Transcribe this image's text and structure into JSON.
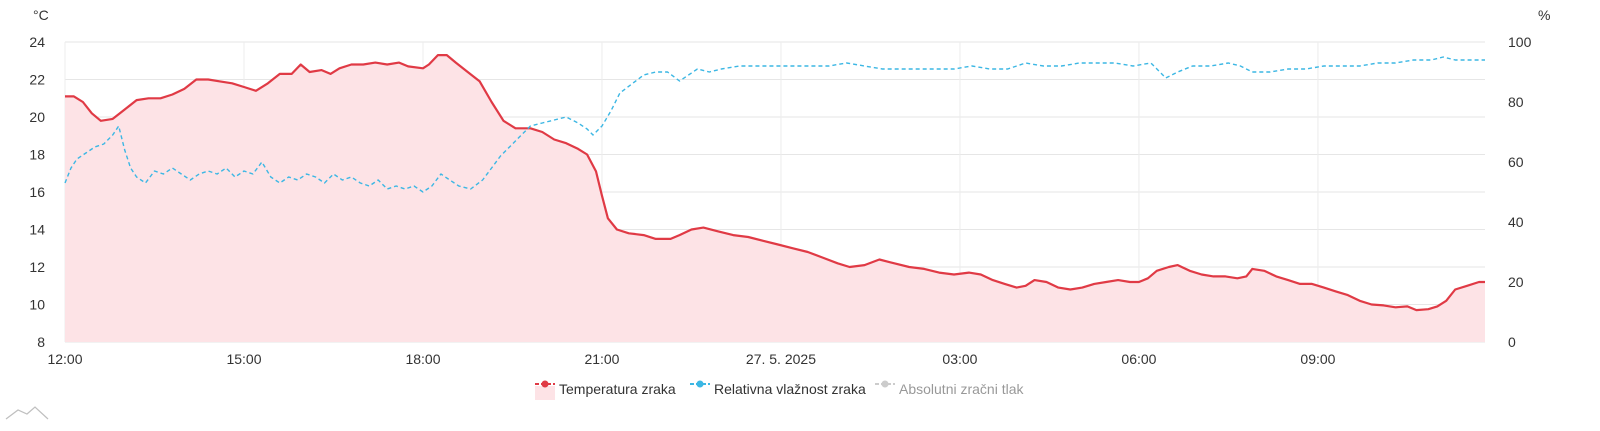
{
  "chart_data": {
    "type": "line",
    "x_unit": "hours since 12:00 (26. 5. 2025)",
    "x_ticks": [
      {
        "x": 0,
        "label": "12:00"
      },
      {
        "x": 3,
        "label": "15:00"
      },
      {
        "x": 6,
        "label": "18:00"
      },
      {
        "x": 9,
        "label": "21:00"
      },
      {
        "x": 12,
        "label": "27. 5. 2025"
      },
      {
        "x": 15,
        "label": "03:00"
      },
      {
        "x": 18,
        "label": "06:00"
      },
      {
        "x": 21,
        "label": "09:00"
      }
    ],
    "xlim": [
      0,
      23.8
    ],
    "y_left": {
      "unit_label": "°C",
      "ylim": [
        8,
        24
      ],
      "ticks": [
        8,
        10,
        12,
        14,
        16,
        18,
        20,
        22,
        24
      ]
    },
    "y_right": {
      "unit_label": "%",
      "ylim": [
        0,
        100
      ],
      "ticks": [
        0,
        20,
        40,
        60,
        80,
        100
      ]
    },
    "grid": true,
    "legend_position": "bottom-center",
    "series": [
      {
        "name": "Temperatura zraka",
        "axis": "left",
        "color": "#E03A45",
        "fill": "#FDE3E6",
        "style": "solid-area",
        "points": [
          [
            0,
            21.1
          ],
          [
            0.15,
            21.1
          ],
          [
            0.3,
            20.8
          ],
          [
            0.45,
            20.2
          ],
          [
            0.6,
            19.8
          ],
          [
            0.8,
            19.9
          ],
          [
            1.0,
            20.4
          ],
          [
            1.2,
            20.9
          ],
          [
            1.4,
            21.0
          ],
          [
            1.6,
            21.0
          ],
          [
            1.8,
            21.2
          ],
          [
            2.0,
            21.5
          ],
          [
            2.2,
            22.0
          ],
          [
            2.4,
            22.0
          ],
          [
            2.6,
            21.9
          ],
          [
            2.8,
            21.8
          ],
          [
            3.0,
            21.6
          ],
          [
            3.2,
            21.4
          ],
          [
            3.4,
            21.8
          ],
          [
            3.6,
            22.3
          ],
          [
            3.8,
            22.3
          ],
          [
            3.95,
            22.8
          ],
          [
            4.1,
            22.4
          ],
          [
            4.3,
            22.5
          ],
          [
            4.45,
            22.3
          ],
          [
            4.6,
            22.6
          ],
          [
            4.8,
            22.8
          ],
          [
            5.0,
            22.8
          ],
          [
            5.2,
            22.9
          ],
          [
            5.4,
            22.8
          ],
          [
            5.6,
            22.9
          ],
          [
            5.75,
            22.7
          ],
          [
            6.0,
            22.6
          ],
          [
            6.1,
            22.8
          ],
          [
            6.25,
            23.3
          ],
          [
            6.4,
            23.3
          ],
          [
            6.55,
            22.9
          ],
          [
            6.75,
            22.4
          ],
          [
            6.95,
            21.9
          ],
          [
            7.15,
            20.8
          ],
          [
            7.35,
            19.8
          ],
          [
            7.55,
            19.4
          ],
          [
            7.8,
            19.4
          ],
          [
            8.0,
            19.2
          ],
          [
            8.2,
            18.8
          ],
          [
            8.4,
            18.6
          ],
          [
            8.6,
            18.3
          ],
          [
            8.75,
            18.0
          ],
          [
            8.9,
            17.1
          ],
          [
            9.0,
            15.8
          ],
          [
            9.1,
            14.6
          ],
          [
            9.25,
            14.0
          ],
          [
            9.45,
            13.8
          ],
          [
            9.7,
            13.7
          ],
          [
            9.9,
            13.5
          ],
          [
            10.15,
            13.5
          ],
          [
            10.3,
            13.7
          ],
          [
            10.5,
            14.0
          ],
          [
            10.7,
            14.1
          ],
          [
            10.95,
            13.9
          ],
          [
            11.2,
            13.7
          ],
          [
            11.45,
            13.6
          ],
          [
            11.7,
            13.4
          ],
          [
            11.95,
            13.2
          ],
          [
            12.2,
            13.0
          ],
          [
            12.45,
            12.8
          ],
          [
            12.7,
            12.5
          ],
          [
            12.95,
            12.2
          ],
          [
            13.15,
            12.0
          ],
          [
            13.4,
            12.1
          ],
          [
            13.65,
            12.4
          ],
          [
            13.9,
            12.2
          ],
          [
            14.15,
            12.0
          ],
          [
            14.4,
            11.9
          ],
          [
            14.65,
            11.7
          ],
          [
            14.9,
            11.6
          ],
          [
            15.15,
            11.7
          ],
          [
            15.35,
            11.6
          ],
          [
            15.55,
            11.3
          ],
          [
            15.75,
            11.1
          ],
          [
            15.95,
            10.9
          ],
          [
            16.1,
            11.0
          ],
          [
            16.25,
            11.3
          ],
          [
            16.45,
            11.2
          ],
          [
            16.65,
            10.9
          ],
          [
            16.85,
            10.8
          ],
          [
            17.05,
            10.9
          ],
          [
            17.25,
            11.1
          ],
          [
            17.45,
            11.2
          ],
          [
            17.65,
            11.3
          ],
          [
            17.85,
            11.2
          ],
          [
            18.0,
            11.2
          ],
          [
            18.15,
            11.4
          ],
          [
            18.3,
            11.8
          ],
          [
            18.5,
            12.0
          ],
          [
            18.65,
            12.1
          ],
          [
            18.85,
            11.8
          ],
          [
            19.05,
            11.6
          ],
          [
            19.25,
            11.5
          ],
          [
            19.45,
            11.5
          ],
          [
            19.65,
            11.4
          ],
          [
            19.8,
            11.5
          ],
          [
            19.9,
            11.9
          ],
          [
            20.1,
            11.8
          ],
          [
            20.3,
            11.5
          ],
          [
            20.5,
            11.3
          ],
          [
            20.7,
            11.1
          ],
          [
            20.9,
            11.1
          ],
          [
            21.1,
            10.9
          ],
          [
            21.3,
            10.7
          ],
          [
            21.5,
            10.5
          ],
          [
            21.7,
            10.2
          ],
          [
            21.9,
            10.0
          ],
          [
            22.1,
            9.95
          ],
          [
            22.3,
            9.85
          ],
          [
            22.5,
            9.9
          ],
          [
            22.65,
            9.7
          ],
          [
            22.85,
            9.75
          ],
          [
            23.0,
            9.9
          ],
          [
            23.15,
            10.2
          ],
          [
            23.3,
            10.8
          ],
          [
            23.5,
            11.0
          ],
          [
            23.7,
            11.2
          ],
          [
            23.8,
            11.2
          ]
        ]
      },
      {
        "name": "Relativna vlažnost zraka",
        "axis": "right",
        "color": "#3CB7E4",
        "style": "dashed-points",
        "points": [
          [
            0,
            53
          ],
          [
            0.1,
            58
          ],
          [
            0.2,
            61
          ],
          [
            0.35,
            63
          ],
          [
            0.5,
            65
          ],
          [
            0.65,
            66
          ],
          [
            0.8,
            69
          ],
          [
            0.9,
            72
          ],
          [
            1.0,
            64
          ],
          [
            1.1,
            58
          ],
          [
            1.2,
            55
          ],
          [
            1.35,
            53
          ],
          [
            1.5,
            57
          ],
          [
            1.65,
            56
          ],
          [
            1.8,
            58
          ],
          [
            1.95,
            56
          ],
          [
            2.1,
            54
          ],
          [
            2.25,
            56
          ],
          [
            2.4,
            57
          ],
          [
            2.55,
            56
          ],
          [
            2.7,
            58
          ],
          [
            2.85,
            55
          ],
          [
            3.0,
            57
          ],
          [
            3.15,
            56
          ],
          [
            3.3,
            60
          ],
          [
            3.45,
            55
          ],
          [
            3.6,
            53
          ],
          [
            3.75,
            55
          ],
          [
            3.9,
            54
          ],
          [
            4.05,
            56
          ],
          [
            4.2,
            55
          ],
          [
            4.35,
            53
          ],
          [
            4.5,
            56
          ],
          [
            4.65,
            54
          ],
          [
            4.8,
            55
          ],
          [
            4.95,
            53
          ],
          [
            5.1,
            52
          ],
          [
            5.25,
            54
          ],
          [
            5.4,
            51
          ],
          [
            5.55,
            52
          ],
          [
            5.7,
            51
          ],
          [
            5.85,
            52
          ],
          [
            6.0,
            50
          ],
          [
            6.15,
            52
          ],
          [
            6.3,
            56
          ],
          [
            6.45,
            54
          ],
          [
            6.6,
            52
          ],
          [
            6.8,
            51
          ],
          [
            7.0,
            54
          ],
          [
            7.15,
            58
          ],
          [
            7.3,
            62
          ],
          [
            7.45,
            65
          ],
          [
            7.6,
            68
          ],
          [
            7.8,
            72
          ],
          [
            8.0,
            73
          ],
          [
            8.2,
            74
          ],
          [
            8.4,
            75
          ],
          [
            8.6,
            73
          ],
          [
            8.75,
            71
          ],
          [
            8.85,
            69
          ],
          [
            9.0,
            72
          ],
          [
            9.15,
            77
          ],
          [
            9.3,
            83
          ],
          [
            9.5,
            86
          ],
          [
            9.7,
            89
          ],
          [
            9.9,
            90
          ],
          [
            10.1,
            90
          ],
          [
            10.3,
            87
          ],
          [
            10.45,
            89
          ],
          [
            10.6,
            91
          ],
          [
            10.8,
            90
          ],
          [
            11.0,
            91
          ],
          [
            11.3,
            92
          ],
          [
            11.6,
            92
          ],
          [
            11.9,
            92
          ],
          [
            12.2,
            92
          ],
          [
            12.5,
            92
          ],
          [
            12.8,
            92
          ],
          [
            13.1,
            93
          ],
          [
            13.4,
            92
          ],
          [
            13.7,
            91
          ],
          [
            14.0,
            91
          ],
          [
            14.3,
            91
          ],
          [
            14.6,
            91
          ],
          [
            14.9,
            91
          ],
          [
            15.2,
            92
          ],
          [
            15.5,
            91
          ],
          [
            15.8,
            91
          ],
          [
            16.1,
            93
          ],
          [
            16.4,
            92
          ],
          [
            16.7,
            92
          ],
          [
            17.0,
            93
          ],
          [
            17.3,
            93
          ],
          [
            17.6,
            93
          ],
          [
            17.9,
            92
          ],
          [
            18.2,
            93
          ],
          [
            18.45,
            88
          ],
          [
            18.65,
            90
          ],
          [
            18.9,
            92
          ],
          [
            19.2,
            92
          ],
          [
            19.5,
            93
          ],
          [
            19.7,
            92
          ],
          [
            19.9,
            90
          ],
          [
            20.2,
            90
          ],
          [
            20.5,
            91
          ],
          [
            20.8,
            91
          ],
          [
            21.1,
            92
          ],
          [
            21.4,
            92
          ],
          [
            21.7,
            92
          ],
          [
            22.0,
            93
          ],
          [
            22.3,
            93
          ],
          [
            22.6,
            94
          ],
          [
            22.9,
            94
          ],
          [
            23.1,
            95
          ],
          [
            23.3,
            94
          ],
          [
            23.5,
            94
          ],
          [
            23.8,
            94
          ]
        ]
      },
      {
        "name": "Absolutni zračni tlak",
        "axis": "right",
        "color": "#9A9A9A",
        "style": "hidden",
        "points": []
      }
    ]
  }
}
